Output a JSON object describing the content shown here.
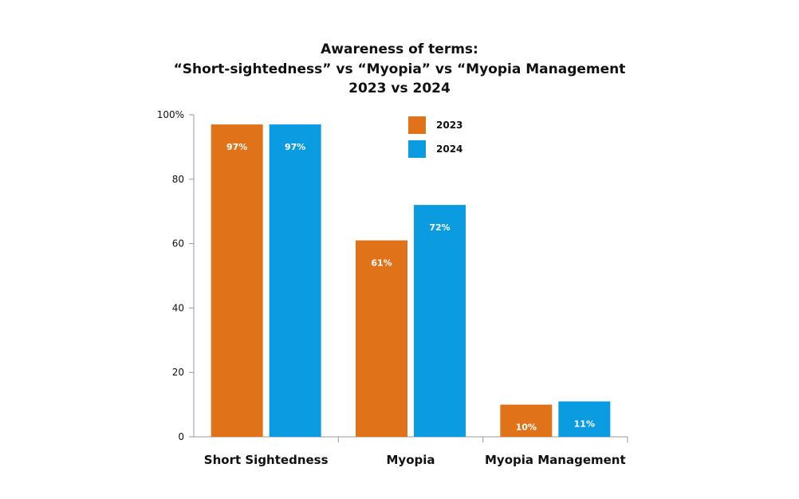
{
  "chart_data": {
    "type": "bar",
    "title_lines": [
      "Awareness of terms:",
      "“Short-sightedness” vs “Myopia” vs “Myopia Management",
      "2023 vs 2024"
    ],
    "categories": [
      "Short Sightedness",
      "Myopia",
      "Myopia Management"
    ],
    "series": [
      {
        "name": "2023",
        "color": "#E0731A",
        "values": [
          97,
          61,
          10
        ],
        "labels": [
          "97%",
          "61%",
          "10%"
        ]
      },
      {
        "name": "2024",
        "color": "#0A9BE0",
        "values": [
          97,
          72,
          11
        ],
        "labels": [
          "97%",
          "72%",
          "11%"
        ]
      }
    ],
    "yticks": [
      0,
      20,
      40,
      60,
      80,
      100
    ],
    "ytick_labels": [
      "0",
      "20",
      "40",
      "60",
      "80",
      "100%"
    ],
    "ylim": [
      0,
      100
    ],
    "legend_position": "top-center",
    "grid": false
  }
}
